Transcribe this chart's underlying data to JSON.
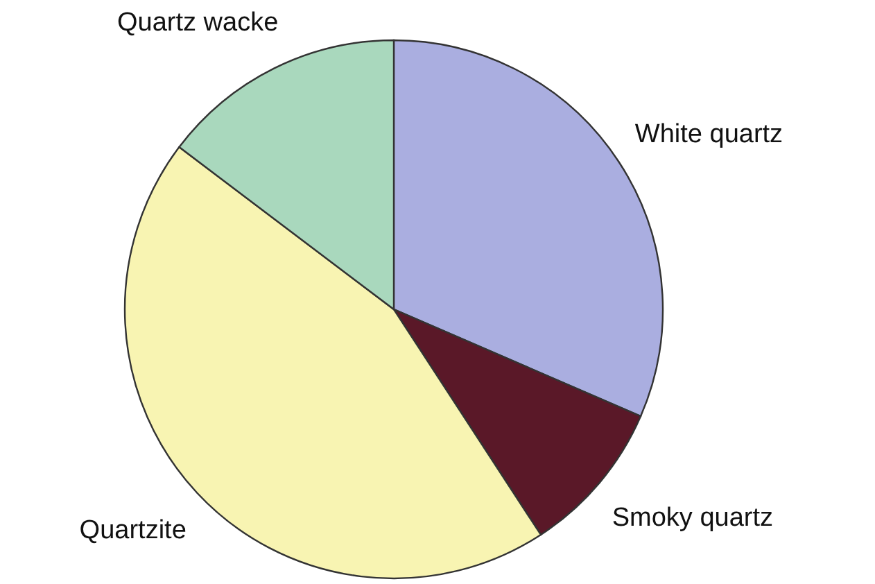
{
  "chart_data": {
    "type": "pie",
    "categories": [
      "White quartz",
      "Smoky quartz",
      "Quartzite",
      "Quartz wacke"
    ],
    "values": [
      31.5,
      9.3,
      44.5,
      14.7
    ],
    "colors": [
      "#aaaee0",
      "#5a1828",
      "#f8f4b2",
      "#a9d8bd"
    ]
  }
}
